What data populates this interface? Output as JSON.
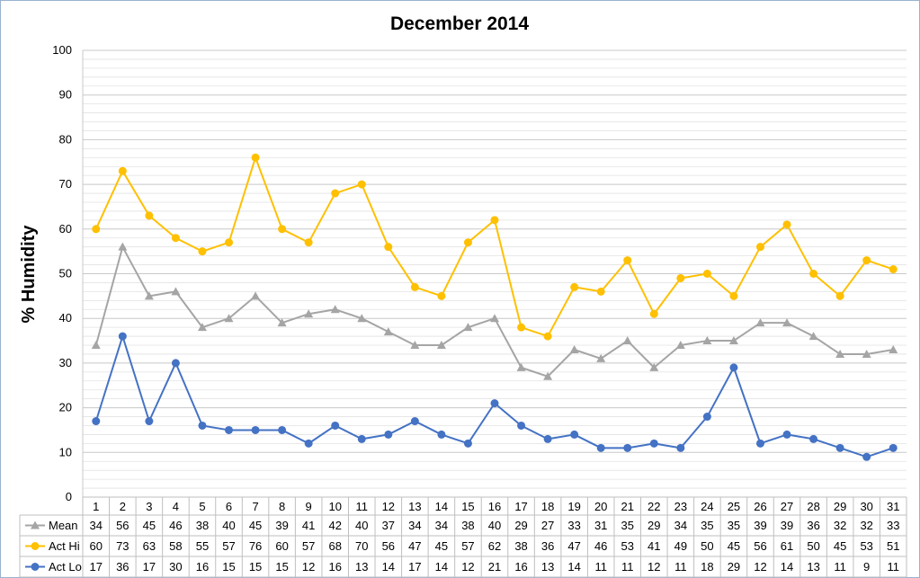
{
  "chart_data": {
    "type": "line",
    "title": "December 2014",
    "ylabel": "% Humidity",
    "xlabel": "",
    "ylim": [
      0,
      100
    ],
    "y_major_ticks": [
      0,
      10,
      20,
      30,
      40,
      50,
      60,
      70,
      80,
      90,
      100
    ],
    "y_minor_step": 2,
    "grid": true,
    "legend": "data-table-left",
    "categories": [
      "1",
      "2",
      "3",
      "4",
      "5",
      "6",
      "7",
      "8",
      "9",
      "10",
      "11",
      "12",
      "13",
      "14",
      "15",
      "16",
      "17",
      "18",
      "19",
      "20",
      "21",
      "22",
      "23",
      "24",
      "25",
      "26",
      "27",
      "28",
      "29",
      "30",
      "31"
    ],
    "series": [
      {
        "name": "Mean",
        "color": "#a5a5a5",
        "marker": "triangle",
        "values": [
          34,
          56,
          45,
          46,
          38,
          40,
          45,
          39,
          41,
          42,
          40,
          37,
          34,
          34,
          38,
          40,
          29,
          27,
          33,
          31,
          35,
          29,
          34,
          35,
          35,
          39,
          39,
          36,
          32,
          32,
          33
        ]
      },
      {
        "name": "Act Hi",
        "color": "#ffc000",
        "marker": "circle",
        "values": [
          60,
          73,
          63,
          58,
          55,
          57,
          76,
          60,
          57,
          68,
          70,
          56,
          47,
          45,
          57,
          62,
          38,
          36,
          47,
          46,
          53,
          41,
          49,
          50,
          45,
          56,
          61,
          50,
          45,
          53,
          51
        ]
      },
      {
        "name": "Act Lo",
        "color": "#4472c4",
        "marker": "circle",
        "values": [
          17,
          36,
          17,
          30,
          16,
          15,
          15,
          15,
          12,
          16,
          13,
          14,
          17,
          14,
          12,
          21,
          16,
          13,
          14,
          11,
          11,
          12,
          11,
          18,
          29,
          12,
          14,
          13,
          11,
          9,
          11
        ]
      }
    ]
  }
}
